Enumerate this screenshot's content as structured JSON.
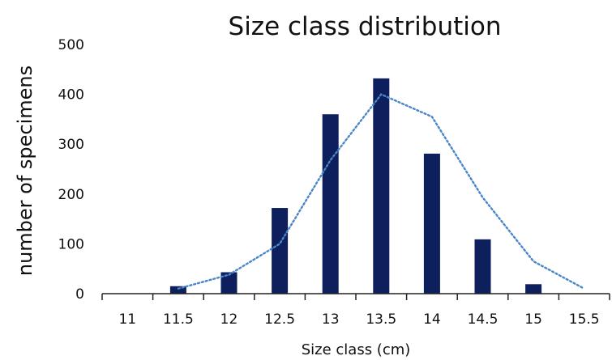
{
  "chart_data": {
    "type": "bar",
    "title": "Size class distribution",
    "xlabel": "Size class (cm)",
    "ylabel": "number of specimens",
    "categories": [
      "11",
      "11.5",
      "12",
      "12.5",
      "13",
      "13.5",
      "14",
      "14.5",
      "15",
      "15.5"
    ],
    "ylim": [
      0,
      500
    ],
    "y_ticks": [
      0,
      100,
      200,
      300,
      400,
      500
    ],
    "grid": false,
    "series": [
      {
        "type": "bar",
        "color": "#0d1f5c",
        "values": [
          0,
          15,
          43,
          172,
          360,
          432,
          281,
          109,
          19,
          0
        ]
      },
      {
        "type": "line",
        "style": "dotted",
        "color": "#4a86c8",
        "values": [
          null,
          10,
          38,
          100,
          268,
          400,
          355,
          193,
          65,
          10
        ]
      }
    ]
  }
}
